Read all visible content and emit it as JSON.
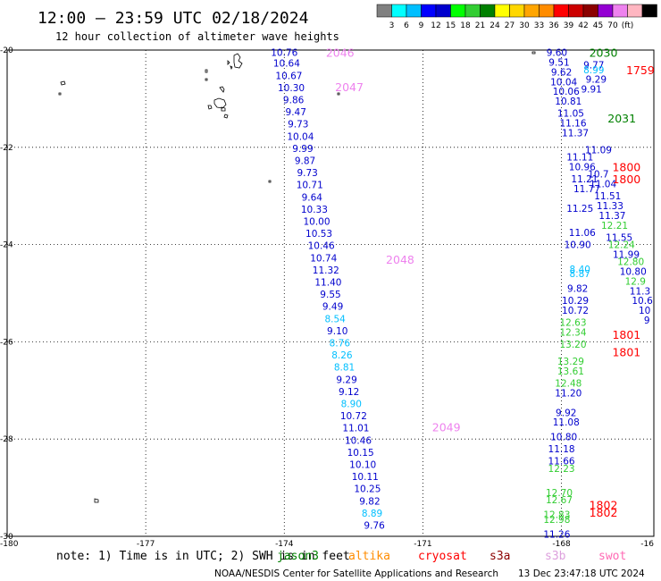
{
  "header": {
    "title": "12:00 – 23:59 UTC 02/18/2024",
    "subtitle": "12 hour collection of altimeter wave heights"
  },
  "colorbar": {
    "colors": [
      "#808080",
      "#00ffff",
      "#00bfff",
      "#0000ff",
      "#0000cd",
      "#00ff00",
      "#32cd32",
      "#008000",
      "#ffff00",
      "#ffd700",
      "#ffa500",
      "#ff8c00",
      "#ff0000",
      "#cc0000",
      "#8b0000",
      "#9400d3",
      "#ee82ee",
      "#ffb6c1",
      "#000000"
    ],
    "labels": [
      "3",
      "6",
      "9",
      "12",
      "15",
      "18",
      "21",
      "24",
      "27",
      "30",
      "33",
      "36",
      "39",
      "42",
      "45",
      "70",
      "(ft)"
    ]
  },
  "axes": {
    "x_ticks": [
      "-180",
      "-177",
      "-174",
      "-171",
      "-168",
      "-16"
    ],
    "y_ticks": [
      "-20",
      "-22",
      "-24",
      "-26",
      "-28",
      "-30"
    ]
  },
  "legend": {
    "note": "note: 1) Time is in UTC; 2) SWH is in feet",
    "satellites": [
      {
        "name": "jason3",
        "color": "#008000"
      },
      {
        "name": "altika",
        "color": "#ff8c00"
      },
      {
        "name": "cryosat",
        "color": "#ff0000"
      },
      {
        "name": "s3a",
        "color": "#8b0000"
      },
      {
        "name": "s3b",
        "color": "#dda0dd"
      },
      {
        "name": "swot",
        "color": "#ff69b4"
      }
    ]
  },
  "footer": {
    "credit": "NOAA/NESDIS Center for Satellite Applications and Research",
    "timestamp": "13 Dec 23:47:18 UTC 2024"
  },
  "chart_data": {
    "type": "scatter",
    "title": "12:00 – 23:59 UTC 02/18/2024",
    "subtitle": "12 hour collection of altimeter wave heights",
    "xlabel": "",
    "ylabel": "",
    "xlim": [
      -180,
      -166
    ],
    "ylim": [
      -30,
      -20
    ],
    "grid": true,
    "pass_labels": [
      {
        "text": "2046",
        "lon": -173.1,
        "lat": -20.05,
        "color": "#ee82ee"
      },
      {
        "text": "2047",
        "lon": -172.9,
        "lat": -20.75,
        "color": "#ee82ee"
      },
      {
        "text": "2048",
        "lon": -171.8,
        "lat": -24.3,
        "color": "#ee82ee"
      },
      {
        "text": "2049",
        "lon": -170.8,
        "lat": -27.75,
        "color": "#ee82ee"
      },
      {
        "text": "2030",
        "lon": -167.4,
        "lat": -20.05,
        "color": "#008000"
      },
      {
        "text": "1759",
        "lon": -166.6,
        "lat": -20.4,
        "color": "#ff0000"
      },
      {
        "text": "2031",
        "lon": -167.0,
        "lat": -21.4,
        "color": "#008000"
      },
      {
        "text": "1800",
        "lon": -166.9,
        "lat": -22.4,
        "color": "#ff0000"
      },
      {
        "text": "1800",
        "lon": -166.9,
        "lat": -22.65,
        "color": "#ff0000"
      },
      {
        "text": "1801",
        "lon": -166.9,
        "lat": -25.85,
        "color": "#ff0000"
      },
      {
        "text": "1801",
        "lon": -166.9,
        "lat": -26.2,
        "color": "#ff0000"
      },
      {
        "text": "1802",
        "lon": -167.4,
        "lat": -29.35,
        "color": "#ff0000"
      },
      {
        "text": "1802",
        "lon": -167.4,
        "lat": -29.5,
        "color": "#ff0000"
      }
    ],
    "series": [
      {
        "values": [
          {
            "lon": -174.0,
            "lat": -20.05,
            "v": "10.76",
            "c": "#0000cd"
          },
          {
            "lon": -173.95,
            "lat": -20.27,
            "v": "10.64",
            "c": "#0000cd"
          },
          {
            "lon": -173.9,
            "lat": -20.52,
            "v": "10.67",
            "c": "#0000cd"
          },
          {
            "lon": -173.85,
            "lat": -20.77,
            "v": "10.30",
            "c": "#0000cd"
          },
          {
            "lon": -173.8,
            "lat": -21.02,
            "v": "9.86",
            "c": "#0000cd"
          },
          {
            "lon": -173.75,
            "lat": -21.27,
            "v": "9.47",
            "c": "#0000cd"
          },
          {
            "lon": -173.7,
            "lat": -21.52,
            "v": "9.73",
            "c": "#0000cd"
          },
          {
            "lon": -173.65,
            "lat": -21.77,
            "v": "10.04",
            "c": "#0000cd"
          },
          {
            "lon": -173.6,
            "lat": -22.02,
            "v": "9.99",
            "c": "#0000cd"
          },
          {
            "lon": -173.55,
            "lat": -22.27,
            "v": "9.87",
            "c": "#0000cd"
          },
          {
            "lon": -173.5,
            "lat": -22.52,
            "v": "9.73",
            "c": "#0000cd"
          },
          {
            "lon": -173.45,
            "lat": -22.77,
            "v": "10.71",
            "c": "#0000cd"
          },
          {
            "lon": -173.4,
            "lat": -23.02,
            "v": "9.64",
            "c": "#0000cd"
          },
          {
            "lon": -173.35,
            "lat": -23.27,
            "v": "10.33",
            "c": "#0000cd"
          },
          {
            "lon": -173.3,
            "lat": -23.52,
            "v": "10.00",
            "c": "#0000cd"
          },
          {
            "lon": -173.25,
            "lat": -23.77,
            "v": "10.53",
            "c": "#0000cd"
          },
          {
            "lon": -173.2,
            "lat": -24.02,
            "v": "10.46",
            "c": "#0000cd"
          },
          {
            "lon": -173.15,
            "lat": -24.27,
            "v": "10.74",
            "c": "#0000cd"
          },
          {
            "lon": -173.1,
            "lat": -24.52,
            "v": "11.32",
            "c": "#0000cd"
          },
          {
            "lon": -173.05,
            "lat": -24.77,
            "v": "11.40",
            "c": "#0000cd"
          },
          {
            "lon": -173.0,
            "lat": -25.02,
            "v": "9.55",
            "c": "#0000cd"
          },
          {
            "lon": -172.95,
            "lat": -25.27,
            "v": "9.49",
            "c": "#0000cd"
          },
          {
            "lon": -172.9,
            "lat": -25.52,
            "v": "8.54",
            "c": "#00bfff"
          },
          {
            "lon": -172.85,
            "lat": -25.77,
            "v": "9.10",
            "c": "#0000cd"
          },
          {
            "lon": -172.8,
            "lat": -26.02,
            "v": "8.76",
            "c": "#00bfff"
          },
          {
            "lon": -172.75,
            "lat": -26.27,
            "v": "8.26",
            "c": "#00bfff"
          },
          {
            "lon": -172.7,
            "lat": -26.52,
            "v": "8.81",
            "c": "#00bfff"
          },
          {
            "lon": -172.65,
            "lat": -26.77,
            "v": "9.29",
            "c": "#0000cd"
          },
          {
            "lon": -172.6,
            "lat": -27.02,
            "v": "9.12",
            "c": "#0000cd"
          },
          {
            "lon": -172.55,
            "lat": -27.27,
            "v": "8.90",
            "c": "#00bfff"
          },
          {
            "lon": -172.5,
            "lat": -27.52,
            "v": "10.72",
            "c": "#0000cd"
          },
          {
            "lon": -172.45,
            "lat": -27.77,
            "v": "11.01",
            "c": "#0000cd"
          },
          {
            "lon": -172.4,
            "lat": -28.02,
            "v": "10.46",
            "c": "#0000cd"
          },
          {
            "lon": -172.35,
            "lat": -28.27,
            "v": "10.15",
            "c": "#0000cd"
          },
          {
            "lon": -172.3,
            "lat": -28.52,
            "v": "10.10",
            "c": "#0000cd"
          },
          {
            "lon": -172.25,
            "lat": -28.77,
            "v": "10.11",
            "c": "#0000cd"
          },
          {
            "lon": -172.2,
            "lat": -29.02,
            "v": "10.25",
            "c": "#0000cd"
          },
          {
            "lon": -172.15,
            "lat": -29.27,
            "v": "9.82",
            "c": "#0000cd"
          },
          {
            "lon": -172.1,
            "lat": -29.52,
            "v": "8.89",
            "c": "#00bfff"
          },
          {
            "lon": -172.05,
            "lat": -29.77,
            "v": "9.76",
            "c": "#0000cd"
          }
        ]
      },
      {
        "values": [
          {
            "lon": -168.1,
            "lat": -20.05,
            "v": "9.60",
            "c": "#0000cd"
          },
          {
            "lon": -168.05,
            "lat": -20.25,
            "v": "9.51",
            "c": "#0000cd"
          },
          {
            "lon": -168.0,
            "lat": -20.45,
            "v": "9.62",
            "c": "#0000cd"
          },
          {
            "lon": -167.95,
            "lat": -20.65,
            "v": "10.04",
            "c": "#0000cd"
          },
          {
            "lon": -167.9,
            "lat": -20.85,
            "v": "10.06",
            "c": "#0000cd"
          },
          {
            "lon": -167.85,
            "lat": -21.05,
            "v": "10.81",
            "c": "#0000cd"
          },
          {
            "lon": -167.8,
            "lat": -21.3,
            "v": "11.05",
            "c": "#0000cd"
          },
          {
            "lon": -167.75,
            "lat": -21.5,
            "v": "11.16",
            "c": "#0000cd"
          },
          {
            "lon": -167.7,
            "lat": -21.7,
            "v": "11.37",
            "c": "#0000cd"
          },
          {
            "lon": -167.6,
            "lat": -22.2,
            "v": "11.11",
            "c": "#0000cd"
          },
          {
            "lon": -167.55,
            "lat": -22.4,
            "v": "10.96",
            "c": "#0000cd"
          },
          {
            "lon": -167.5,
            "lat": -22.65,
            "v": "11.21",
            "c": "#0000cd"
          },
          {
            "lon": -167.45,
            "lat": -22.85,
            "v": "11.77",
            "c": "#0000cd"
          },
          {
            "lon": -167.6,
            "lat": -23.25,
            "v": "11.25",
            "c": "#0000cd"
          },
          {
            "lon": -167.55,
            "lat": -23.75,
            "v": "11.06",
            "c": "#0000cd"
          },
          {
            "lon": -167.65,
            "lat": -24.0,
            "v": "10.90",
            "c": "#0000cd"
          },
          {
            "lon": -167.6,
            "lat": -24.5,
            "v": "8.40",
            "c": "#00bfff"
          },
          {
            "lon": -167.6,
            "lat": -24.6,
            "v": "8.87",
            "c": "#00bfff"
          },
          {
            "lon": -167.65,
            "lat": -24.9,
            "v": "9.82",
            "c": "#0000cd"
          },
          {
            "lon": -167.7,
            "lat": -25.15,
            "v": "10.29",
            "c": "#0000cd"
          },
          {
            "lon": -167.7,
            "lat": -25.35,
            "v": "10.72",
            "c": "#0000cd"
          },
          {
            "lon": -167.75,
            "lat": -25.6,
            "v": "12.63",
            "c": "#32cd32"
          },
          {
            "lon": -167.75,
            "lat": -25.8,
            "v": "12.34",
            "c": "#32cd32"
          },
          {
            "lon": -167.75,
            "lat": -26.05,
            "v": "13.20",
            "c": "#32cd32"
          },
          {
            "lon": -167.8,
            "lat": -26.4,
            "v": "13.29",
            "c": "#32cd32"
          },
          {
            "lon": -167.8,
            "lat": -26.6,
            "v": "13.61",
            "c": "#32cd32"
          },
          {
            "lon": -167.85,
            "lat": -26.85,
            "v": "12.48",
            "c": "#32cd32"
          },
          {
            "lon": -167.85,
            "lat": -27.05,
            "v": "11.20",
            "c": "#0000cd"
          },
          {
            "lon": -167.9,
            "lat": -27.45,
            "v": "9.92",
            "c": "#0000cd"
          },
          {
            "lon": -167.9,
            "lat": -27.65,
            "v": "11.08",
            "c": "#0000cd"
          },
          {
            "lon": -167.95,
            "lat": -27.95,
            "v": "10.80",
            "c": "#0000cd"
          },
          {
            "lon": -168.0,
            "lat": -28.2,
            "v": "11.18",
            "c": "#0000cd"
          },
          {
            "lon": -168.0,
            "lat": -28.45,
            "v": "11.66",
            "c": "#0000cd"
          },
          {
            "lon": -168.0,
            "lat": -28.6,
            "v": "12.23",
            "c": "#32cd32"
          },
          {
            "lon": -168.05,
            "lat": -29.1,
            "v": "12.70",
            "c": "#32cd32"
          },
          {
            "lon": -168.05,
            "lat": -29.25,
            "v": "12.67",
            "c": "#32cd32"
          },
          {
            "lon": -168.1,
            "lat": -29.55,
            "v": "12.83",
            "c": "#32cd32"
          },
          {
            "lon": -168.1,
            "lat": -29.65,
            "v": "12.98",
            "c": "#32cd32"
          },
          {
            "lon": -168.1,
            "lat": -29.95,
            "v": "11.26",
            "c": "#0000cd"
          }
        ]
      },
      {
        "values": [
          {
            "lon": -167.3,
            "lat": -20.3,
            "v": "9.77",
            "c": "#0000cd"
          },
          {
            "lon": -167.3,
            "lat": -20.4,
            "v": "8.99",
            "c": "#00bfff"
          },
          {
            "lon": -167.25,
            "lat": -20.6,
            "v": "9.29",
            "c": "#0000cd"
          },
          {
            "lon": -167.35,
            "lat": -20.8,
            "v": "9.91",
            "c": "#0000cd"
          },
          {
            "lon": -167.2,
            "lat": -22.05,
            "v": "11.09",
            "c": "#0000cd"
          },
          {
            "lon": -167.2,
            "lat": -22.55,
            "v": "10.7",
            "c": "#0000cd"
          },
          {
            "lon": -167.1,
            "lat": -22.75,
            "v": "11.04",
            "c": "#0000cd"
          },
          {
            "lon": -167.0,
            "lat": -23.0,
            "v": "11.51",
            "c": "#0000cd"
          },
          {
            "lon": -166.95,
            "lat": -23.2,
            "v": "11.33",
            "c": "#0000cd"
          },
          {
            "lon": -166.9,
            "lat": -23.4,
            "v": "11.37",
            "c": "#0000cd"
          },
          {
            "lon": -166.85,
            "lat": -23.6,
            "v": "12.21",
            "c": "#32cd32"
          },
          {
            "lon": -166.75,
            "lat": -23.85,
            "v": "11.55",
            "c": "#0000cd"
          },
          {
            "lon": -166.7,
            "lat": -24.0,
            "v": "12.24",
            "c": "#32cd32"
          },
          {
            "lon": -166.6,
            "lat": -24.2,
            "v": "11.99",
            "c": "#0000cd"
          },
          {
            "lon": -166.5,
            "lat": -24.35,
            "v": "12.80",
            "c": "#32cd32"
          },
          {
            "lon": -166.45,
            "lat": -24.55,
            "v": "10.80",
            "c": "#0000cd"
          },
          {
            "lon": -166.4,
            "lat": -24.75,
            "v": "12.9",
            "c": "#32cd32"
          },
          {
            "lon": -166.3,
            "lat": -24.95,
            "v": "11.3",
            "c": "#0000cd"
          },
          {
            "lon": -166.25,
            "lat": -25.15,
            "v": "10.6",
            "c": "#0000cd"
          },
          {
            "lon": -166.2,
            "lat": -25.35,
            "v": "10",
            "c": "#0000cd"
          },
          {
            "lon": -166.15,
            "lat": -25.55,
            "v": "9",
            "c": "#0000cd"
          }
        ]
      }
    ]
  }
}
